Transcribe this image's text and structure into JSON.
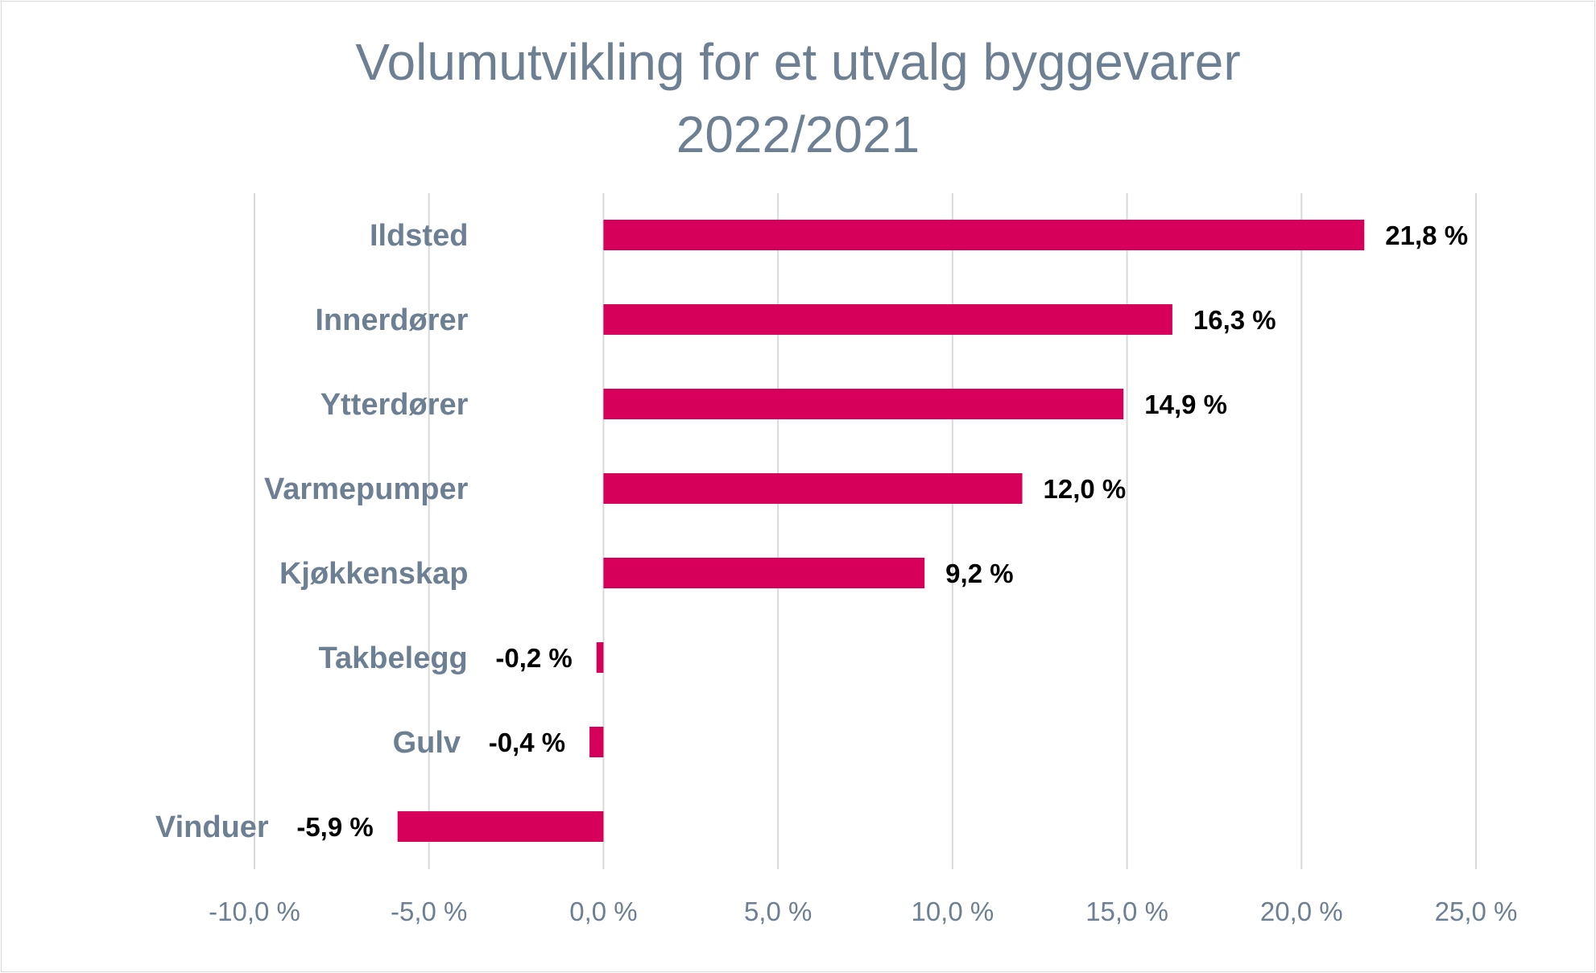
{
  "chart_data": {
    "type": "bar",
    "orientation": "horizontal",
    "title_lines": [
      "Volumutvikling for et utvalg byggevarer",
      "2022/2021"
    ],
    "categories": [
      "Ildsted",
      "Innerdører",
      "Ytterdører",
      "Varmepumper",
      "Kjøkkenskap",
      "Takbelegg",
      "Gulv",
      "Vinduer"
    ],
    "values": [
      21.8,
      16.3,
      14.9,
      12.0,
      9.2,
      -0.2,
      -0.4,
      -5.9
    ],
    "value_labels": [
      "21,8 %",
      "16,3 %",
      "14,9 %",
      "12,0 %",
      "9,2 %",
      "-0,2 %",
      "-0,4 %",
      "-5,9 %"
    ],
    "xlim": [
      -10,
      25
    ],
    "ticks": [
      -10,
      -5,
      0,
      5,
      10,
      15,
      20,
      25
    ],
    "tick_labels": [
      "-10,0 %",
      "-5,0 %",
      "0,0 %",
      "5,0 %",
      "10,0 %",
      "15,0 %",
      "20,0 %",
      "25,0 %"
    ],
    "grid": true,
    "legend": "none",
    "bar_color": "#d6005a",
    "grid_color": "#d9d9d9",
    "label_color": "#6d7f93"
  }
}
